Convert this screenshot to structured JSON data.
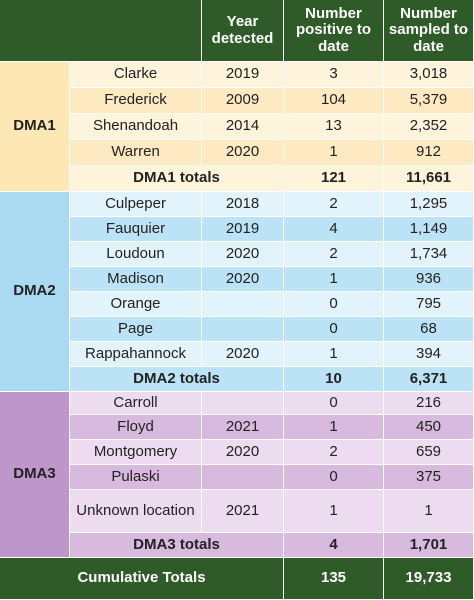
{
  "header": {
    "columns": [
      "Year detected",
      "Number positive to date",
      "Number sampled to date"
    ]
  },
  "sections": [
    {
      "label": "DMA1",
      "rows": [
        [
          "Clarke",
          "2019",
          "3",
          "3,018"
        ],
        [
          "Frederick",
          "2009",
          "104",
          "5,379"
        ],
        [
          "Shenandoah",
          "2014",
          "13",
          "2,352"
        ],
        [
          "Warren",
          "2020",
          "1",
          "912"
        ]
      ],
      "totals": [
        "DMA1 totals",
        "121",
        "11,661"
      ]
    },
    {
      "label": "DMA2",
      "rows": [
        [
          "Culpeper",
          "2018",
          "2",
          "1,295"
        ],
        [
          "Fauquier",
          "2019",
          "4",
          "1,149"
        ],
        [
          "Loudoun",
          "2020",
          "2",
          "1,734"
        ],
        [
          "Madison",
          "2020",
          "1",
          "936"
        ],
        [
          "Orange",
          null,
          "0",
          "795"
        ],
        [
          "Page",
          null,
          "0",
          "68"
        ],
        [
          "Rappahannock",
          "2020",
          "1",
          "394"
        ]
      ],
      "totals": [
        "DMA2 totals",
        "10",
        "6,371"
      ]
    },
    {
      "label": "DMA3",
      "rows": [
        [
          "Carroll",
          null,
          "0",
          "216"
        ],
        [
          "Floyd",
          "2021",
          "1",
          "450"
        ],
        [
          "Montgomery",
          "2020",
          "2",
          "659"
        ],
        [
          "Pulaski",
          null,
          "0",
          "375"
        ],
        [
          "Unknown location",
          "2021",
          "1",
          "1"
        ]
      ],
      "totals": [
        "DMA3 totals",
        "4",
        "1,701"
      ]
    }
  ],
  "footer": [
    "Cumulative Totals",
    "135",
    "19,733"
  ]
}
